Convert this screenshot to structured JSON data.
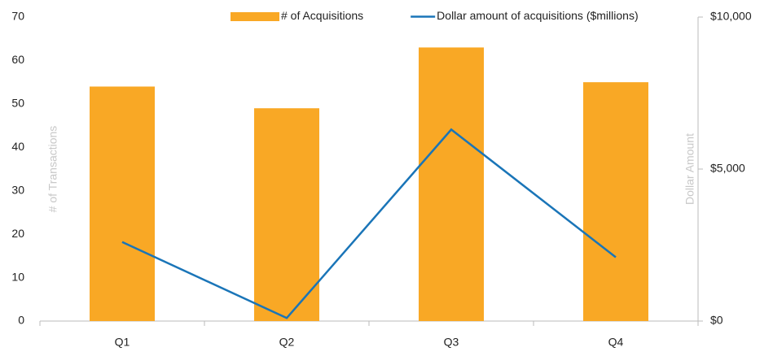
{
  "chart_data": {
    "type": "bar",
    "categories": [
      "Q1",
      "Q2",
      "Q3",
      "Q4"
    ],
    "series": [
      {
        "name": "# of Acquisitions",
        "type": "bar",
        "color": "#f9a825",
        "values": [
          54,
          49,
          63,
          55
        ]
      },
      {
        "name": "Dollar amount of acquisitions ($millions)",
        "type": "line",
        "axis": "y2",
        "color": "#1a75b8",
        "values": [
          2600,
          100,
          6300,
          2100
        ]
      }
    ],
    "ylabel": "# of Transactions",
    "y2label": "Dollar Amount",
    "ylim": [
      0,
      70
    ],
    "yticks": [
      0,
      10,
      20,
      30,
      40,
      50,
      60,
      70
    ],
    "y2lim": [
      0,
      10000
    ],
    "y2ticks": [
      {
        "value": 0,
        "label": "$0"
      },
      {
        "value": 5000,
        "label": "$5,000"
      },
      {
        "value": 10000,
        "label": "$10,000"
      }
    ],
    "grid": false,
    "legend": "top"
  }
}
